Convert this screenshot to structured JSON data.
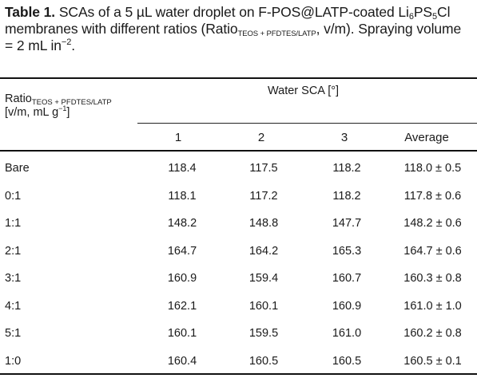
{
  "caption": {
    "label": "Table 1.",
    "text_a": " SCAs of a 5 µL water droplet on F-POS@LATP-coated Li",
    "sub_li": "6",
    "text_ps": "PS",
    "sub_ps": "5",
    "text_cl": "Cl membranes with different ratios (Ratio",
    "sub_ratio": "TEOS + PFDTES/LATP",
    "text_b": ", v/m). Spraying volume = 2 mL in",
    "sup_in": "−2",
    "text_end": "."
  },
  "header": {
    "ratio_main": "Ratio",
    "ratio_sub": "TEOS + PFDTES/LATP",
    "ratio_unit_a": "[v/m, mL g",
    "ratio_unit_sup": "−1",
    "ratio_unit_b": "]",
    "sca_label": "Water SCA [°]",
    "columns": [
      "1",
      "2",
      "3",
      "Average"
    ]
  },
  "rows": [
    {
      "ratio": "Bare",
      "v1": "118.4",
      "v2": "117.5",
      "v3": "118.2",
      "avg": "118.0 ± 0.5"
    },
    {
      "ratio": "0:1",
      "v1": "118.1",
      "v2": "117.2",
      "v3": "118.2",
      "avg": "117.8 ± 0.6"
    },
    {
      "ratio": "1:1",
      "v1": "148.2",
      "v2": "148.8",
      "v3": "147.7",
      "avg": "148.2 ± 0.6"
    },
    {
      "ratio": "2:1",
      "v1": "164.7",
      "v2": "164.2",
      "v3": "165.3",
      "avg": "164.7 ± 0.6"
    },
    {
      "ratio": "3:1",
      "v1": "160.9",
      "v2": "159.4",
      "v3": "160.7",
      "avg": "160.3 ± 0.8"
    },
    {
      "ratio": "4:1",
      "v1": "162.1",
      "v2": "160.1",
      "v3": "160.9",
      "avg": "161.0 ± 1.0"
    },
    {
      "ratio": "5:1",
      "v1": "160.1",
      "v2": "159.5",
      "v3": "161.0",
      "avg": "160.2 ± 0.8"
    },
    {
      "ratio": "1:0",
      "v1": "160.4",
      "v2": "160.5",
      "v3": "160.5",
      "avg": "160.5 ± 0.1"
    }
  ]
}
